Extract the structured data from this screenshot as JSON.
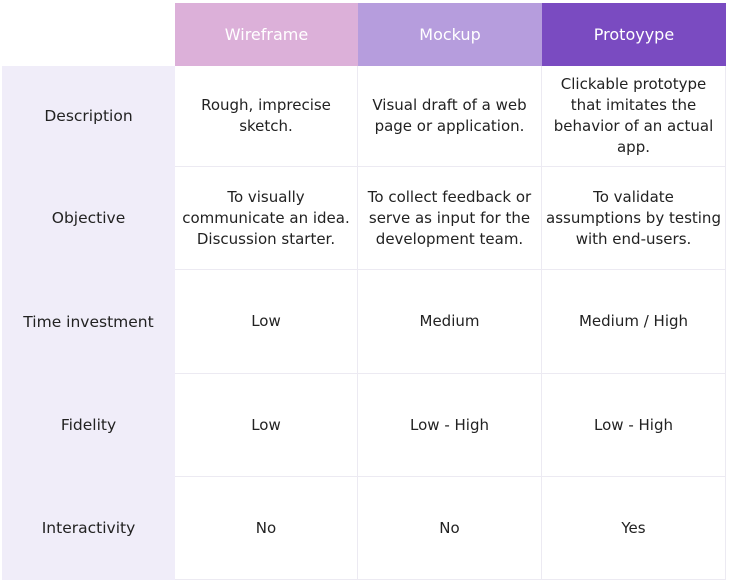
{
  "table": {
    "columns": [
      "Wireframe",
      "Mockup",
      "Protoyype"
    ],
    "rows": [
      {
        "label": "Description",
        "cells": [
          "Rough, imprecise sketch.",
          "Visual draft of a web page or application.",
          "Clickable prototype that imitates the behavior of an actual app."
        ]
      },
      {
        "label": "Objective",
        "cells": [
          "To visually communicate an idea. Discussion starter.",
          "To collect feedback or serve as input for the development team.",
          "To validate assumptions by testing with end-users."
        ]
      },
      {
        "label": "Time investment",
        "cells": [
          "Low",
          "Medium",
          "Medium / High"
        ]
      },
      {
        "label": "Fidelity",
        "cells": [
          "Low",
          "Low - High",
          "Low - High"
        ]
      },
      {
        "label": "Interactivity",
        "cells": [
          "No",
          "No",
          "Yes"
        ]
      }
    ]
  }
}
